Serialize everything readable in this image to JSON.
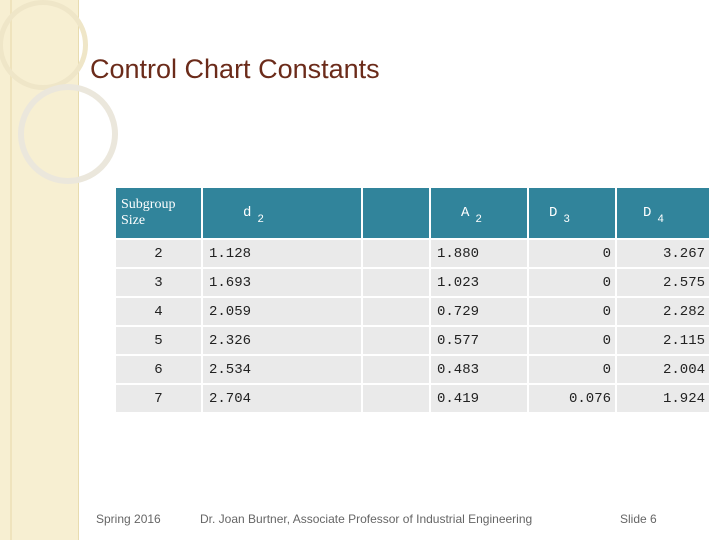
{
  "title": "Control Chart Constants",
  "table": {
    "headers": {
      "n": "Subgroup Size",
      "d2": {
        "sym": "d",
        "sub": "2"
      },
      "blank": "",
      "a2": {
        "sym": "A",
        "sub": "2"
      },
      "d3": {
        "sym": "D",
        "sub": "3"
      },
      "d4": {
        "sym": "D",
        "sub": "4"
      }
    },
    "rows": [
      {
        "n": "2",
        "d2": "1.128",
        "a2": "1.880",
        "d3": "0",
        "d4": "3.267"
      },
      {
        "n": "3",
        "d2": "1.693",
        "a2": "1.023",
        "d3": "0",
        "d4": "2.575"
      },
      {
        "n": "4",
        "d2": "2.059",
        "a2": "0.729",
        "d3": "0",
        "d4": "2.282"
      },
      {
        "n": "5",
        "d2": "2.326",
        "a2": "0.577",
        "d3": "0",
        "d4": "2.115"
      },
      {
        "n": "6",
        "d2": "2.534",
        "a2": "0.483",
        "d3": "0",
        "d4": "2.004"
      },
      {
        "n": "7",
        "d2": "2.704",
        "a2": "0.419",
        "d3": "0.076",
        "d4": "1.924"
      }
    ]
  },
  "footer": {
    "left": "Spring 2016",
    "center": "Dr. Joan Burtner, Associate Professor of Industrial Engineering",
    "right": "Slide 6"
  },
  "colors": {
    "header_bg": "#31849b",
    "title": "#6b2b1a",
    "cell_bg": "#eaeaea"
  }
}
